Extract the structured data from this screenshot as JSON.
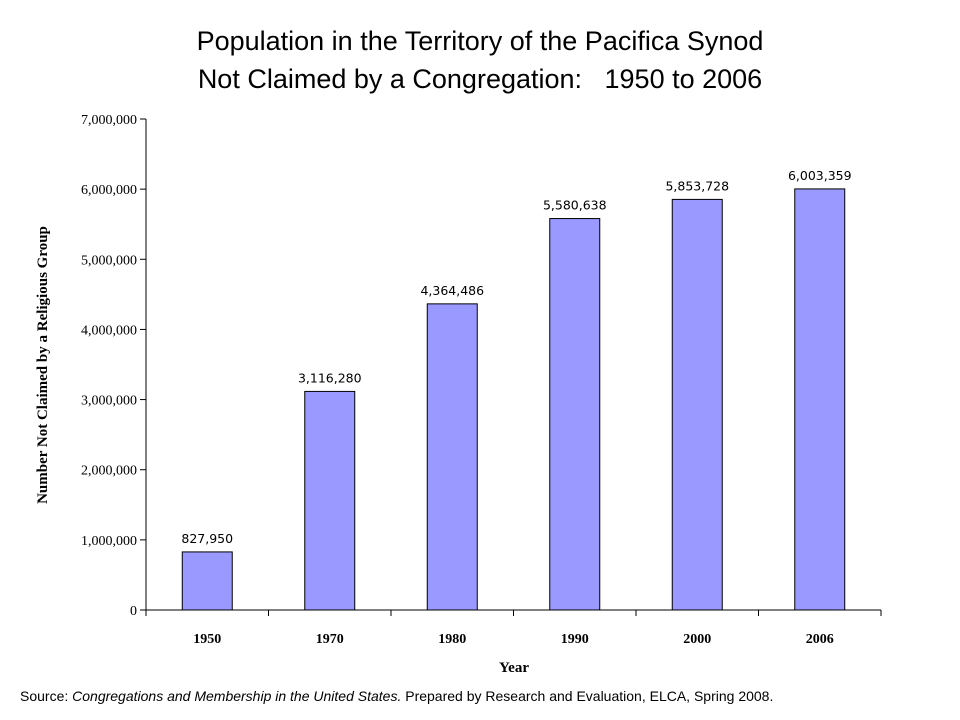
{
  "chart_data": {
    "type": "bar",
    "title_line1": "Population in the Territory of the Pacifica Synod",
    "title_line2": "Not Claimed by a Congregation:   1950 to 2006",
    "xlabel": "Year",
    "ylabel": "Number Not Claimed by a Religious Group",
    "categories": [
      "1950",
      "1970",
      "1980",
      "1990",
      "2000",
      "2006"
    ],
    "values": [
      827950,
      3116280,
      4364486,
      5580638,
      5853728,
      6003359
    ],
    "data_labels": [
      "827,950",
      "3,116,280",
      "4,364,486",
      "5,580,638",
      "5,853,728",
      "6,003,359"
    ],
    "y_ticks": [
      0,
      1000000,
      2000000,
      3000000,
      4000000,
      5000000,
      6000000,
      7000000
    ],
    "y_tick_labels": [
      "0",
      "1,000,000",
      "2,000,000",
      "3,000,000",
      "4,000,000",
      "5,000,000",
      "6,000,000",
      "7,000,000"
    ],
    "ylim": [
      0,
      7000000
    ],
    "grid": false,
    "legend": "none",
    "bar_color": "#9999ff"
  },
  "footer": {
    "source_prefix": "Source:  ",
    "source_title": "Congregations and Membership in the United States.",
    "source_suffix": "  Prepared by Research and Evaluation, ELCA, Spring 2008."
  }
}
